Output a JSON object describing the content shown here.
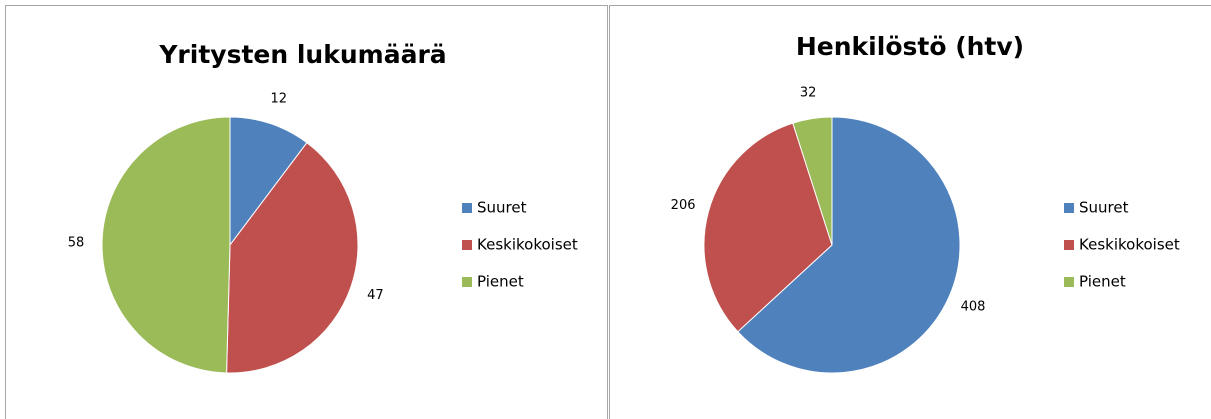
{
  "chart_data": [
    {
      "type": "pie",
      "title": "Yritysten lukumäärä",
      "categories": [
        "Suuret",
        "Keskikokoiset",
        "Pienet"
      ],
      "values": [
        12,
        47,
        58
      ],
      "colors": [
        "#4f81bd",
        "#c0504d",
        "#9bbb59"
      ],
      "legend": "right"
    },
    {
      "type": "pie",
      "title": "Henkilöstö (htv)",
      "categories": [
        "Suuret",
        "Keskikokoiset",
        "Pienet"
      ],
      "values": [
        408,
        206,
        32
      ],
      "colors": [
        "#4f81bd",
        "#c0504d",
        "#9bbb59"
      ],
      "legend": "right"
    }
  ]
}
